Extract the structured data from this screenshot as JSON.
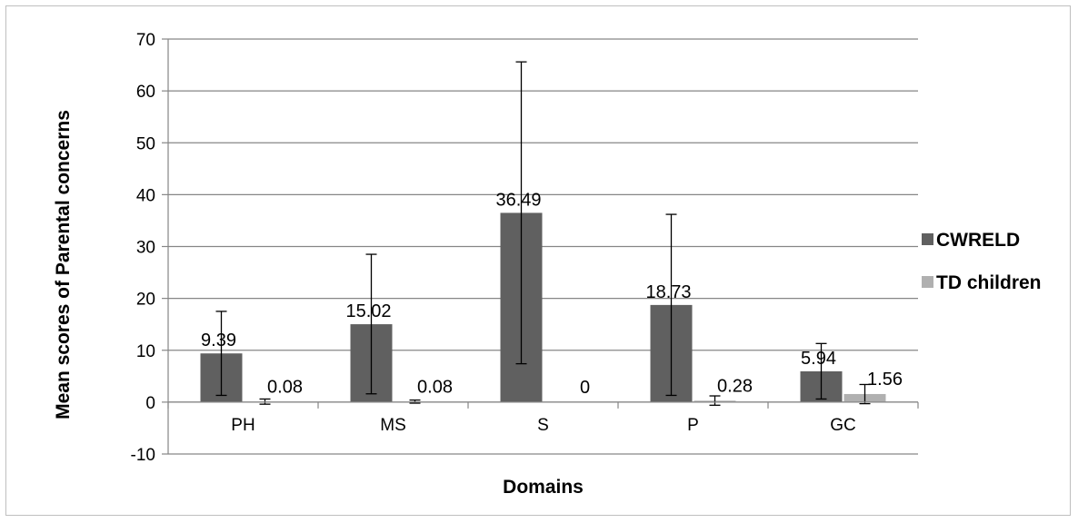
{
  "chart_data": {
    "type": "bar",
    "categories": [
      "PH",
      "MS",
      "S",
      "P",
      "GC"
    ],
    "series": [
      {
        "name": "CWRELD",
        "values": [
          9.39,
          15.02,
          36.49,
          18.73,
          5.94
        ],
        "labels": [
          "9.39",
          "15.02",
          "36.49",
          "18.73",
          "5.94"
        ],
        "error_low": [
          1.3,
          1.6,
          7.4,
          1.3,
          0.6
        ],
        "error_high": [
          17.5,
          28.5,
          65.6,
          36.2,
          11.3
        ],
        "color": "#606060"
      },
      {
        "name": "TD children",
        "values": [
          0.08,
          0.08,
          0,
          0.28,
          1.56
        ],
        "labels": [
          "0.08",
          "0.08",
          "0",
          "0.28",
          "1.56"
        ],
        "error_low": [
          -0.4,
          -0.2,
          0,
          -0.6,
          -0.3
        ],
        "error_high": [
          0.6,
          0.4,
          0,
          1.2,
          3.4
        ],
        "color": "#b0b0b0"
      }
    ],
    "title": "",
    "xlabel": "Domains",
    "ylabel": "Mean scores of Parental concerns",
    "ylim": [
      -10,
      70
    ],
    "yticks": [
      -10,
      0,
      10,
      20,
      30,
      40,
      50,
      60,
      70
    ],
    "grid": true,
    "legend": "right",
    "axis_color": "#868686",
    "grid_color": "#868686"
  }
}
